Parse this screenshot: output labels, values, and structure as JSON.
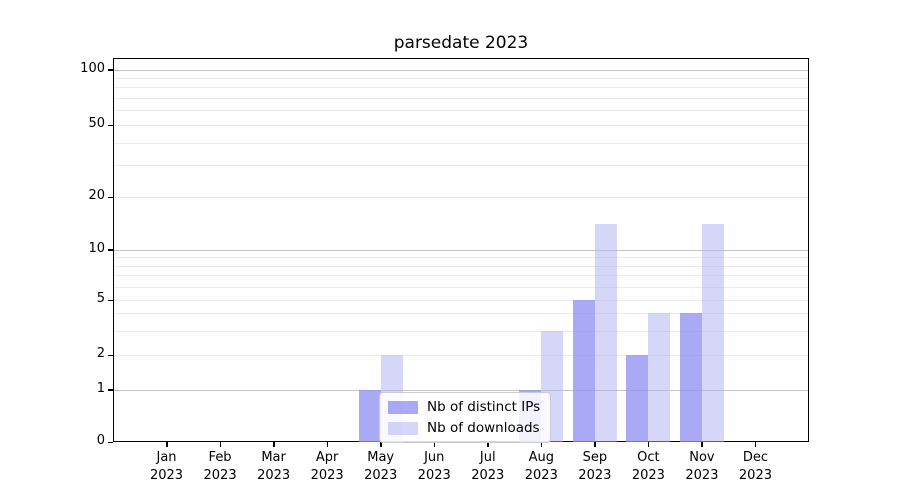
{
  "title": "parsedate 2023",
  "chart_data": {
    "type": "bar",
    "title": "parsedate 2023",
    "xlabel": "",
    "ylabel": "",
    "yscale": "symlog",
    "ylim": [
      0,
      115
    ],
    "grid": true,
    "legend_position": "inside lower-center-left",
    "categories": [
      "Jan 2023",
      "Feb 2023",
      "Mar 2023",
      "Apr 2023",
      "May 2023",
      "Jun 2023",
      "Jul 2023",
      "Aug 2023",
      "Sep 2023",
      "Oct 2023",
      "Nov 2023",
      "Dec 2023"
    ],
    "series": [
      {
        "name": "Nb of distinct IPs",
        "color": "rgba(146,146,243,0.79)",
        "values": [
          0,
          0,
          0,
          0,
          1,
          0,
          0,
          1,
          5,
          2,
          4,
          0
        ]
      },
      {
        "name": "Nb of downloads",
        "color": "rgba(177,177,243,0.52)",
        "values": [
          0,
          0,
          0,
          0,
          2,
          0,
          0,
          3,
          14,
          4,
          14,
          0
        ]
      }
    ],
    "y_tick_values": [
      0,
      1,
      2,
      5,
      10,
      20,
      50,
      100
    ],
    "y_tick_labels": [
      "0",
      "1",
      "2",
      "5",
      "10",
      "20",
      "50",
      "100"
    ],
    "y_grid_major": [
      1,
      10,
      100
    ],
    "y_grid_minor": [
      2,
      3,
      4,
      5,
      6,
      7,
      8,
      9,
      20,
      30,
      40,
      50,
      60,
      70,
      80,
      90
    ],
    "colors": {
      "grid_major": "#c4c4c4",
      "grid_minor": "#ebebeb",
      "spine": "#000000",
      "text": "#000000",
      "background": "#ffffff"
    }
  }
}
